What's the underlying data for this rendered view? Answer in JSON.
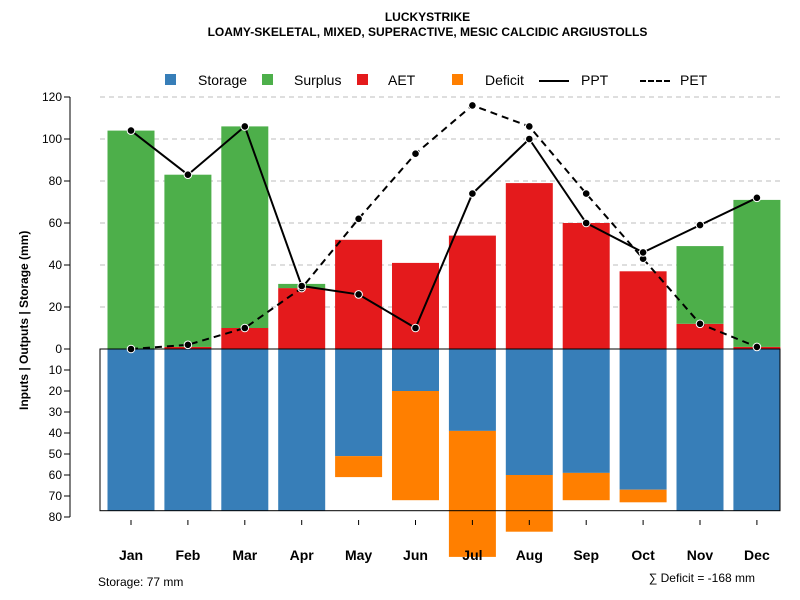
{
  "title": "LUCKYSTRIKE",
  "subtitle": "LOAMY-SKELETAL, MIXED, SUPERACTIVE, MESIC CALCIDIC ARGIUSTOLLS",
  "legend": [
    {
      "label": "Storage",
      "kind": "box",
      "color": "#377EB8"
    },
    {
      "label": "Surplus",
      "kind": "box",
      "color": "#4DAF4A"
    },
    {
      "label": "AET",
      "kind": "box",
      "color": "#E41A1C"
    },
    {
      "label": "Deficit",
      "kind": "box",
      "color": "#FF7F00"
    },
    {
      "label": "PPT",
      "kind": "line",
      "style": "solid"
    },
    {
      "label": "PET",
      "kind": "line",
      "style": "dashed"
    }
  ],
  "ylabel": "Inputs | Outputs | Storage    (mm)",
  "footer_left": "Storage: 77 mm",
  "footer_right": "∑ Deficit = -168 mm",
  "chart_data": {
    "type": "bar",
    "categories": [
      "Jan",
      "Feb",
      "Mar",
      "Apr",
      "May",
      "Jun",
      "Jul",
      "Aug",
      "Sep",
      "Oct",
      "Nov",
      "Dec"
    ],
    "highlight_category": "Jul",
    "ylim": [
      -80,
      120
    ],
    "yticks_upper": [
      0,
      20,
      40,
      60,
      80,
      100,
      120
    ],
    "yticks_lower": [
      10,
      20,
      30,
      40,
      50,
      60,
      70,
      80
    ],
    "storage_capacity": 77,
    "series": [
      {
        "name": "AET",
        "values": [
          0,
          1,
          10,
          29,
          52,
          41,
          54,
          79,
          60,
          37,
          12,
          1
        ]
      },
      {
        "name": "Surplus",
        "values": [
          104,
          82,
          96,
          2,
          0,
          0,
          0,
          0,
          0,
          0,
          37,
          70
        ]
      },
      {
        "name": "Storage",
        "values": [
          77,
          77,
          77,
          77,
          51,
          20,
          39,
          60,
          59,
          67,
          77,
          77
        ]
      },
      {
        "name": "Deficit",
        "values": [
          0,
          0,
          0,
          0,
          10,
          52,
          60,
          27,
          13,
          6,
          0,
          0
        ]
      },
      {
        "name": "PPT",
        "values": [
          104,
          83,
          106,
          30,
          26,
          10,
          74,
          100,
          60,
          46,
          59,
          72
        ]
      },
      {
        "name": "PET",
        "values": [
          0,
          2,
          10,
          29,
          62,
          93,
          116,
          106,
          74,
          43,
          12,
          1
        ]
      }
    ],
    "colors": {
      "Storage": "#377EB8",
      "Surplus": "#4DAF4A",
      "AET": "#E41A1C",
      "Deficit": "#FF7F00",
      "grid": "#BEBEBE"
    }
  }
}
